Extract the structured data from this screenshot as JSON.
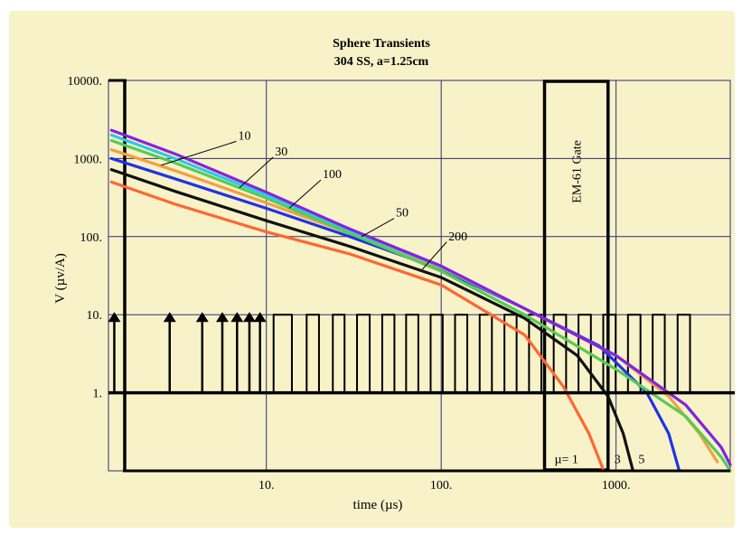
{
  "chart_data": {
    "type": "line",
    "title": "Sphere Transients",
    "subtitle": "304 SS, a=1.25cm",
    "xlabel": "time (µs)",
    "ylabel": "V (µv/A)",
    "x_scale": "log",
    "y_scale": "log",
    "xlim": [
      1.25,
      4500
    ],
    "ylim": [
      0.1,
      10000
    ],
    "x_ticks": [
      {
        "value": 10,
        "label": "10."
      },
      {
        "value": 100,
        "label": "100."
      },
      {
        "value": 1000,
        "label": "1000."
      }
    ],
    "y_ticks": [
      {
        "value": 1,
        "label": "1."
      },
      {
        "value": 10,
        "label": "10."
      },
      {
        "value": 100,
        "label": "100."
      },
      {
        "value": 1000,
        "label": "1000."
      },
      {
        "value": 10000,
        "label": "10000."
      }
    ],
    "grid": true,
    "background": "#f7f2c8",
    "gridColor": "#2e2e72",
    "gate": {
      "label": "EM-61 Gate",
      "x_start": 390,
      "x_end": 900,
      "y_bottom": 0.1,
      "y_top": 10000
    },
    "pulse_train": {
      "base": 1,
      "top": 10,
      "arrows": [
        1.35,
        2.8,
        4.3,
        5.6,
        6.8,
        8.0,
        9.2
      ],
      "pulse_edges": [
        11,
        14,
        17,
        20,
        24,
        28,
        33,
        39,
        46,
        54,
        63,
        74,
        87,
        102,
        120,
        141,
        166,
        195,
        230,
        270,
        318,
        374,
        440,
        518,
        610,
        718,
        845,
        995,
        1170,
        1380,
        1620,
        1900,
        2250,
        2650
      ]
    },
    "curve_labels": [
      {
        "text": "10",
        "x": 6.9,
        "y": 1750,
        "x_to": 2.5,
        "y_to": 820
      },
      {
        "text": "30",
        "x": 11.2,
        "y": 1100,
        "x_to": 7.0,
        "y_to": 420
      },
      {
        "text": "100",
        "x": 21,
        "y": 560,
        "x_to": 13.5,
        "y_to": 230
      },
      {
        "text": "50",
        "x": 55,
        "y": 180,
        "x_to": 35,
        "y_to": 100
      },
      {
        "text": "200",
        "x": 110,
        "y": 90,
        "x_to": 78,
        "y_to": 38
      }
    ],
    "mu_labels": [
      {
        "text": "µ= 1",
        "x": 520,
        "y": 0.125
      },
      {
        "text": "3",
        "x": 1020,
        "y": 0.125
      },
      {
        "text": "5",
        "x": 1400,
        "y": 0.125
      }
    ],
    "series": [
      {
        "color": "#ff6633",
        "x": [
          1.3,
          3,
          10,
          30,
          100,
          300,
          500,
          700,
          850
        ],
        "y": [
          500,
          260,
          115,
          60,
          24,
          5.5,
          1.2,
          0.3,
          0.1
        ]
      },
      {
        "color": "#111111",
        "x": [
          1.3,
          3,
          10,
          30,
          100,
          300,
          600,
          900,
          1100,
          1250
        ],
        "y": [
          720,
          380,
          160,
          75,
          30,
          9,
          3,
          0.9,
          0.3,
          0.1
        ]
      },
      {
        "color": "#1f33e6",
        "x": [
          1.3,
          3,
          10,
          30,
          100,
          300,
          800,
          1500,
          2000,
          2300
        ],
        "y": [
          1000,
          550,
          230,
          100,
          38,
          12,
          4,
          1,
          0.3,
          0.1
        ]
      },
      {
        "color": "#f2a040",
        "x": [
          1.3,
          3,
          10,
          30,
          100,
          300,
          1000,
          2000,
          3000,
          3800
        ],
        "y": [
          1300,
          700,
          270,
          110,
          40,
          12,
          3,
          0.9,
          0.3,
          0.13
        ]
      },
      {
        "color": "#55cc55",
        "x": [
          1.3,
          3,
          10,
          30,
          100,
          300,
          1000,
          2500,
          4000,
          4500
        ],
        "y": [
          1700,
          880,
          310,
          110,
          36,
          10,
          2,
          0.5,
          0.15,
          0.1
        ]
      },
      {
        "color": "#2ec8e8",
        "x": [
          1.3,
          3,
          10,
          30,
          100,
          300,
          1000,
          2500,
          4000,
          4500
        ],
        "y": [
          2000,
          1000,
          340,
          120,
          41,
          12,
          3,
          0.7,
          0.2,
          0.12
        ]
      },
      {
        "color": "#8822dd",
        "x": [
          1.3,
          3,
          10,
          30,
          100,
          300,
          1000,
          2500,
          4000,
          4500
        ],
        "y": [
          2300,
          1150,
          370,
          125,
          42,
          12,
          3,
          0.7,
          0.2,
          0.12
        ]
      }
    ]
  }
}
